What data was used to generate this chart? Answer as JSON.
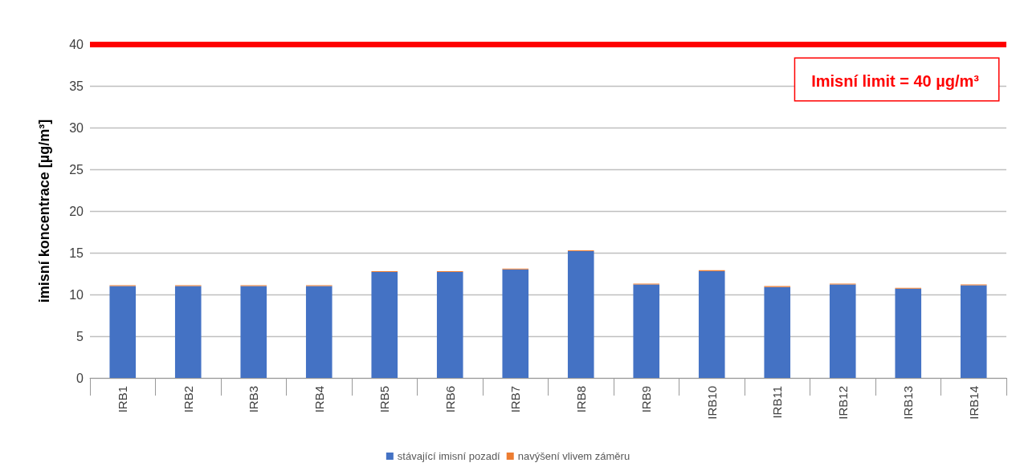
{
  "chart_data": {
    "type": "bar",
    "ylabel": "imisní koncentrace [µg/m³]",
    "stacked": true,
    "categories": [
      "IRB1",
      "IRB2",
      "IRB3",
      "IRB4",
      "IRB5",
      "IRB6",
      "IRB7",
      "IRB8",
      "IRB9",
      "IRB10",
      "IRB11",
      "IRB12",
      "IRB13",
      "IRB14"
    ],
    "series": [
      {
        "name": "stávající imisní pozadí",
        "color": "#4472c4",
        "values": [
          11.0,
          11.0,
          11.0,
          11.0,
          12.7,
          12.7,
          13.0,
          15.2,
          11.2,
          12.8,
          10.9,
          11.2,
          10.7,
          11.1
        ]
      },
      {
        "name": "navýšení vlivem záměru",
        "color": "#ed7d31",
        "values": [
          0.1,
          0.1,
          0.1,
          0.1,
          0.1,
          0.1,
          0.1,
          0.1,
          0.1,
          0.1,
          0.1,
          0.1,
          0.1,
          0.1
        ]
      }
    ],
    "ylim": [
      0,
      40
    ],
    "yticks": [
      0,
      5,
      10,
      15,
      20,
      25,
      30,
      35,
      40
    ],
    "grid": "y",
    "legend": "bottom",
    "ref_lines": [
      {
        "axis": "y",
        "value": 40,
        "label": "Imisní limit = 40 µg/m³",
        "color": "#ff0000"
      }
    ]
  }
}
